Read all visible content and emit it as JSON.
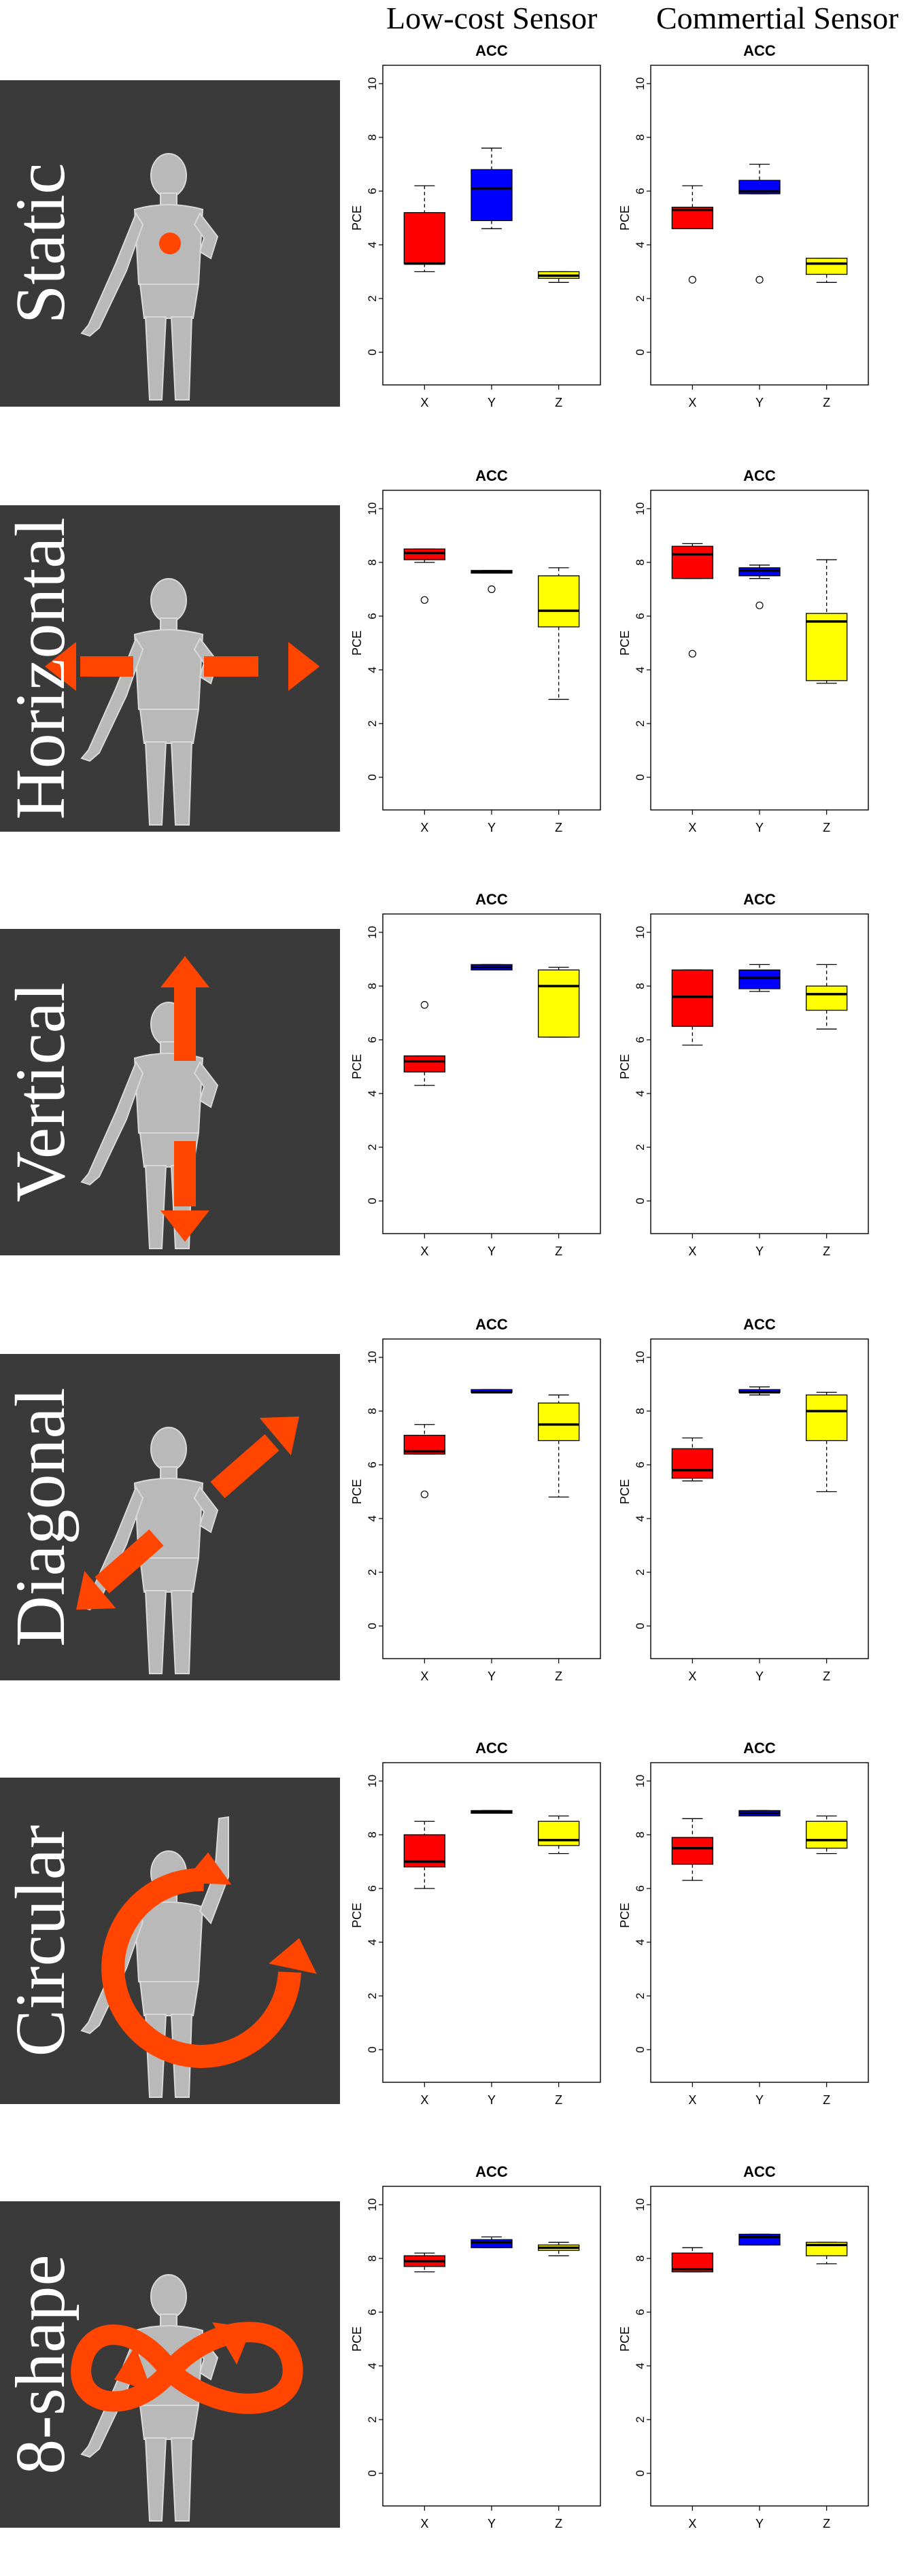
{
  "columns": [
    "Low-cost Sensor",
    "Commertial Sensor"
  ],
  "colors": {
    "X": "#ff0000",
    "Y": "#0000ff",
    "Z": "#ffff00",
    "panel_bg": "#3a3a3a",
    "arrow": "#ff4500"
  },
  "rows": [
    {
      "label": "Static",
      "motion_icon": "dot-marker-icon"
    },
    {
      "label": "Horizontal",
      "motion_icon": "horizontal-arrows-icon"
    },
    {
      "label": "Vertical",
      "motion_icon": "vertical-arrows-icon"
    },
    {
      "label": "Diagonal",
      "motion_icon": "diagonal-arrows-icon"
    },
    {
      "label": "Circular",
      "motion_icon": "circular-arrow-icon"
    },
    {
      "label": "8-shape",
      "motion_icon": "figure-eight-arrow-icon"
    }
  ],
  "chart_data": [
    {
      "type": "box",
      "row": "Static",
      "sensor": "Low-cost Sensor",
      "title": "ACC",
      "ylabel": "PCE",
      "ylim": [
        0,
        10
      ],
      "yticks": [
        0,
        2,
        4,
        6,
        8,
        10
      ],
      "categories": [
        "X",
        "Y",
        "Z"
      ],
      "boxes": [
        {
          "min": 3.0,
          "q1": 3.3,
          "median": 3.3,
          "q3": 5.2,
          "max": 6.2,
          "outliers": []
        },
        {
          "min": 4.6,
          "q1": 4.9,
          "median": 6.1,
          "q3": 6.8,
          "max": 7.6,
          "outliers": []
        },
        {
          "min": 2.6,
          "q1": 2.75,
          "median": 2.85,
          "q3": 3.0,
          "max": 3.0,
          "outliers": []
        }
      ]
    },
    {
      "type": "box",
      "row": "Static",
      "sensor": "Commertial Sensor",
      "title": "ACC",
      "ylabel": "PCE",
      "ylim": [
        0,
        10
      ],
      "yticks": [
        0,
        2,
        4,
        6,
        8,
        10
      ],
      "categories": [
        "X",
        "Y",
        "Z"
      ],
      "boxes": [
        {
          "min": 4.6,
          "q1": 4.6,
          "median": 5.3,
          "q3": 5.4,
          "max": 6.2,
          "outliers": [
            2.7
          ]
        },
        {
          "min": 5.9,
          "q1": 5.9,
          "median": 6.0,
          "q3": 6.4,
          "max": 7.0,
          "outliers": [
            2.7
          ]
        },
        {
          "min": 2.6,
          "q1": 2.9,
          "median": 3.3,
          "q3": 3.5,
          "max": 3.5,
          "outliers": []
        }
      ]
    },
    {
      "type": "box",
      "row": "Horizontal",
      "sensor": "Low-cost Sensor",
      "title": "ACC",
      "ylabel": "PCE",
      "ylim": [
        0,
        10
      ],
      "yticks": [
        0,
        2,
        4,
        6,
        8,
        10
      ],
      "categories": [
        "X",
        "Y",
        "Z"
      ],
      "boxes": [
        {
          "min": 8.0,
          "q1": 8.1,
          "median": 8.35,
          "q3": 8.5,
          "max": 8.5,
          "outliers": [
            6.6
          ]
        },
        {
          "min": 7.6,
          "q1": 7.6,
          "median": 7.65,
          "q3": 7.7,
          "max": 7.7,
          "outliers": [
            7.0
          ]
        },
        {
          "min": 2.9,
          "q1": 5.6,
          "median": 6.2,
          "q3": 7.5,
          "max": 7.8,
          "outliers": []
        }
      ]
    },
    {
      "type": "box",
      "row": "Horizontal",
      "sensor": "Commertial Sensor",
      "title": "ACC",
      "ylabel": "PCE",
      "ylim": [
        0,
        10
      ],
      "yticks": [
        0,
        2,
        4,
        6,
        8,
        10
      ],
      "categories": [
        "X",
        "Y",
        "Z"
      ],
      "boxes": [
        {
          "min": 7.4,
          "q1": 7.4,
          "median": 8.3,
          "q3": 8.6,
          "max": 8.7,
          "outliers": [
            4.6
          ]
        },
        {
          "min": 7.4,
          "q1": 7.5,
          "median": 7.7,
          "q3": 7.8,
          "max": 7.9,
          "outliers": [
            6.4
          ]
        },
        {
          "min": 3.5,
          "q1": 3.6,
          "median": 5.8,
          "q3": 6.1,
          "max": 8.1,
          "outliers": []
        }
      ]
    },
    {
      "type": "box",
      "row": "Vertical",
      "sensor": "Low-cost Sensor",
      "title": "ACC",
      "ylabel": "PCE",
      "ylim": [
        0,
        10
      ],
      "yticks": [
        0,
        2,
        4,
        6,
        8,
        10
      ],
      "categories": [
        "X",
        "Y",
        "Z"
      ],
      "boxes": [
        {
          "min": 4.3,
          "q1": 4.8,
          "median": 5.2,
          "q3": 5.4,
          "max": 5.4,
          "outliers": [
            7.3
          ]
        },
        {
          "min": 8.6,
          "q1": 8.6,
          "median": 8.7,
          "q3": 8.8,
          "max": 8.8,
          "outliers": []
        },
        {
          "min": 6.1,
          "q1": 6.1,
          "median": 8.0,
          "q3": 8.6,
          "max": 8.7,
          "outliers": []
        }
      ]
    },
    {
      "type": "box",
      "row": "Vertical",
      "sensor": "Commertial Sensor",
      "title": "ACC",
      "ylabel": "PCE",
      "ylim": [
        0,
        10
      ],
      "yticks": [
        0,
        2,
        4,
        6,
        8,
        10
      ],
      "categories": [
        "X",
        "Y",
        "Z"
      ],
      "boxes": [
        {
          "min": 5.8,
          "q1": 6.5,
          "median": 7.6,
          "q3": 8.6,
          "max": 8.6,
          "outliers": []
        },
        {
          "min": 7.8,
          "q1": 7.9,
          "median": 8.3,
          "q3": 8.6,
          "max": 8.8,
          "outliers": []
        },
        {
          "min": 6.4,
          "q1": 7.1,
          "median": 7.7,
          "q3": 8.0,
          "max": 8.8,
          "outliers": []
        }
      ]
    },
    {
      "type": "box",
      "row": "Diagonal",
      "sensor": "Low-cost Sensor",
      "title": "ACC",
      "ylabel": "PCE",
      "ylim": [
        0,
        10
      ],
      "yticks": [
        0,
        2,
        4,
        6,
        8,
        10
      ],
      "categories": [
        "X",
        "Y",
        "Z"
      ],
      "boxes": [
        {
          "min": 6.4,
          "q1": 6.4,
          "median": 6.5,
          "q3": 7.1,
          "max": 7.5,
          "outliers": [
            4.9
          ]
        },
        {
          "min": 8.7,
          "q1": 8.7,
          "median": 8.7,
          "q3": 8.8,
          "max": 8.8,
          "outliers": []
        },
        {
          "min": 4.8,
          "q1": 6.9,
          "median": 7.5,
          "q3": 8.3,
          "max": 8.6,
          "outliers": []
        }
      ]
    },
    {
      "type": "box",
      "row": "Diagonal",
      "sensor": "Commertial Sensor",
      "title": "ACC",
      "ylabel": "PCE",
      "ylim": [
        0,
        10
      ],
      "yticks": [
        0,
        2,
        4,
        6,
        8,
        10
      ],
      "categories": [
        "X",
        "Y",
        "Z"
      ],
      "boxes": [
        {
          "min": 5.4,
          "q1": 5.5,
          "median": 5.8,
          "q3": 6.6,
          "max": 7.0,
          "outliers": []
        },
        {
          "min": 8.6,
          "q1": 8.7,
          "median": 8.7,
          "q3": 8.8,
          "max": 8.9,
          "outliers": []
        },
        {
          "min": 5.0,
          "q1": 6.9,
          "median": 8.0,
          "q3": 8.6,
          "max": 8.7,
          "outliers": []
        }
      ]
    },
    {
      "type": "box",
      "row": "Circular",
      "sensor": "Low-cost Sensor",
      "title": "ACC",
      "ylabel": "PCE",
      "ylim": [
        0,
        10
      ],
      "yticks": [
        0,
        2,
        4,
        6,
        8,
        10
      ],
      "categories": [
        "X",
        "Y",
        "Z"
      ],
      "boxes": [
        {
          "min": 6.0,
          "q1": 6.8,
          "median": 7.0,
          "q3": 8.0,
          "max": 8.5,
          "outliers": []
        },
        {
          "min": 8.8,
          "q1": 8.8,
          "median": 8.85,
          "q3": 8.9,
          "max": 8.9,
          "outliers": []
        },
        {
          "min": 7.3,
          "q1": 7.6,
          "median": 7.8,
          "q3": 8.5,
          "max": 8.7,
          "outliers": []
        }
      ]
    },
    {
      "type": "box",
      "row": "Circular",
      "sensor": "Commertial Sensor",
      "title": "ACC",
      "ylabel": "PCE",
      "ylim": [
        0,
        10
      ],
      "yticks": [
        0,
        2,
        4,
        6,
        8,
        10
      ],
      "categories": [
        "X",
        "Y",
        "Z"
      ],
      "boxes": [
        {
          "min": 6.3,
          "q1": 6.9,
          "median": 7.5,
          "q3": 7.9,
          "max": 8.6,
          "outliers": []
        },
        {
          "min": 8.7,
          "q1": 8.7,
          "median": 8.8,
          "q3": 8.9,
          "max": 8.9,
          "outliers": []
        },
        {
          "min": 7.3,
          "q1": 7.5,
          "median": 7.8,
          "q3": 8.5,
          "max": 8.7,
          "outliers": []
        }
      ]
    },
    {
      "type": "box",
      "row": "8-shape",
      "sensor": "Low-cost Sensor",
      "title": "ACC",
      "ylabel": "PCE",
      "ylim": [
        0,
        10
      ],
      "yticks": [
        0,
        2,
        4,
        6,
        8,
        10
      ],
      "categories": [
        "X",
        "Y",
        "Z"
      ],
      "boxes": [
        {
          "min": 7.5,
          "q1": 7.7,
          "median": 7.9,
          "q3": 8.1,
          "max": 8.2,
          "outliers": []
        },
        {
          "min": 8.4,
          "q1": 8.4,
          "median": 8.6,
          "q3": 8.7,
          "max": 8.8,
          "outliers": []
        },
        {
          "min": 8.1,
          "q1": 8.3,
          "median": 8.4,
          "q3": 8.5,
          "max": 8.6,
          "outliers": []
        }
      ]
    },
    {
      "type": "box",
      "row": "8-shape",
      "sensor": "Commertial Sensor",
      "title": "ACC",
      "ylabel": "PCE",
      "ylim": [
        0,
        10
      ],
      "yticks": [
        0,
        2,
        4,
        6,
        8,
        10
      ],
      "categories": [
        "X",
        "Y",
        "Z"
      ],
      "boxes": [
        {
          "min": 7.5,
          "q1": 7.5,
          "median": 7.6,
          "q3": 8.2,
          "max": 8.4,
          "outliers": []
        },
        {
          "min": 8.5,
          "q1": 8.5,
          "median": 8.8,
          "q3": 8.9,
          "max": 8.9,
          "outliers": []
        },
        {
          "min": 7.8,
          "q1": 8.1,
          "median": 8.5,
          "q3": 8.6,
          "max": 8.6,
          "outliers": []
        }
      ]
    }
  ]
}
